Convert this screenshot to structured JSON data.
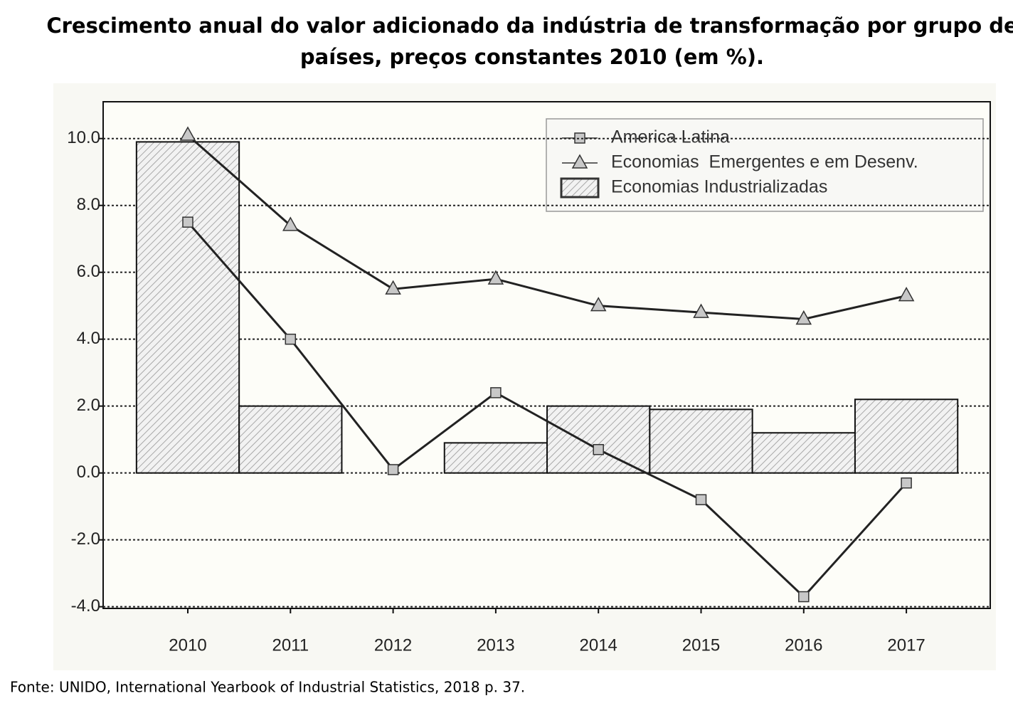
{
  "chart_data": {
    "type": "bar-line",
    "title": "Crescimento anual do valor adicionado da indústria de transformação por grupo de",
    "subtitle": "países, preços constantes 2010 (em %).",
    "source": "Fonte: UNIDO, International Yearbook of Industrial Statistics, 2018  p. 37.",
    "categories": [
      "2010",
      "2011",
      "2012",
      "2013",
      "2014",
      "2015",
      "2016",
      "2017"
    ],
    "series": [
      {
        "name": "America Latina",
        "type": "line",
        "marker": "square",
        "color": "#c8c8c8",
        "values": [
          7.5,
          4.0,
          0.1,
          2.4,
          0.7,
          -0.8,
          -3.7,
          -0.3
        ]
      },
      {
        "name": "Economias  Emergentes e em Desenv.",
        "type": "line",
        "marker": "triangle",
        "color": "#c8c8c8",
        "values": [
          10.1,
          7.4,
          5.5,
          5.8,
          5.0,
          4.8,
          4.6,
          5.3
        ]
      },
      {
        "name": "Economias Industrializadas",
        "type": "bar",
        "color": "#b8b8b8",
        "values": [
          9.9,
          2.0,
          0,
          0.9,
          2.0,
          1.9,
          1.2,
          2.2
        ]
      }
    ],
    "ylim": [
      -4.05,
      11.1
    ],
    "yticks": [
      {
        "value": -4,
        "label": "-4.0"
      },
      {
        "value": -2,
        "label": "-2.0"
      },
      {
        "value": 0,
        "label": "0.0"
      },
      {
        "value": 2,
        "label": "2.0"
      },
      {
        "value": 4,
        "label": "4.0"
      },
      {
        "value": 6,
        "label": "6.0"
      },
      {
        "value": 8,
        "label": "8.0"
      },
      {
        "value": 10,
        "label": "10.0"
      }
    ],
    "grid": true,
    "legend": "top-right"
  }
}
